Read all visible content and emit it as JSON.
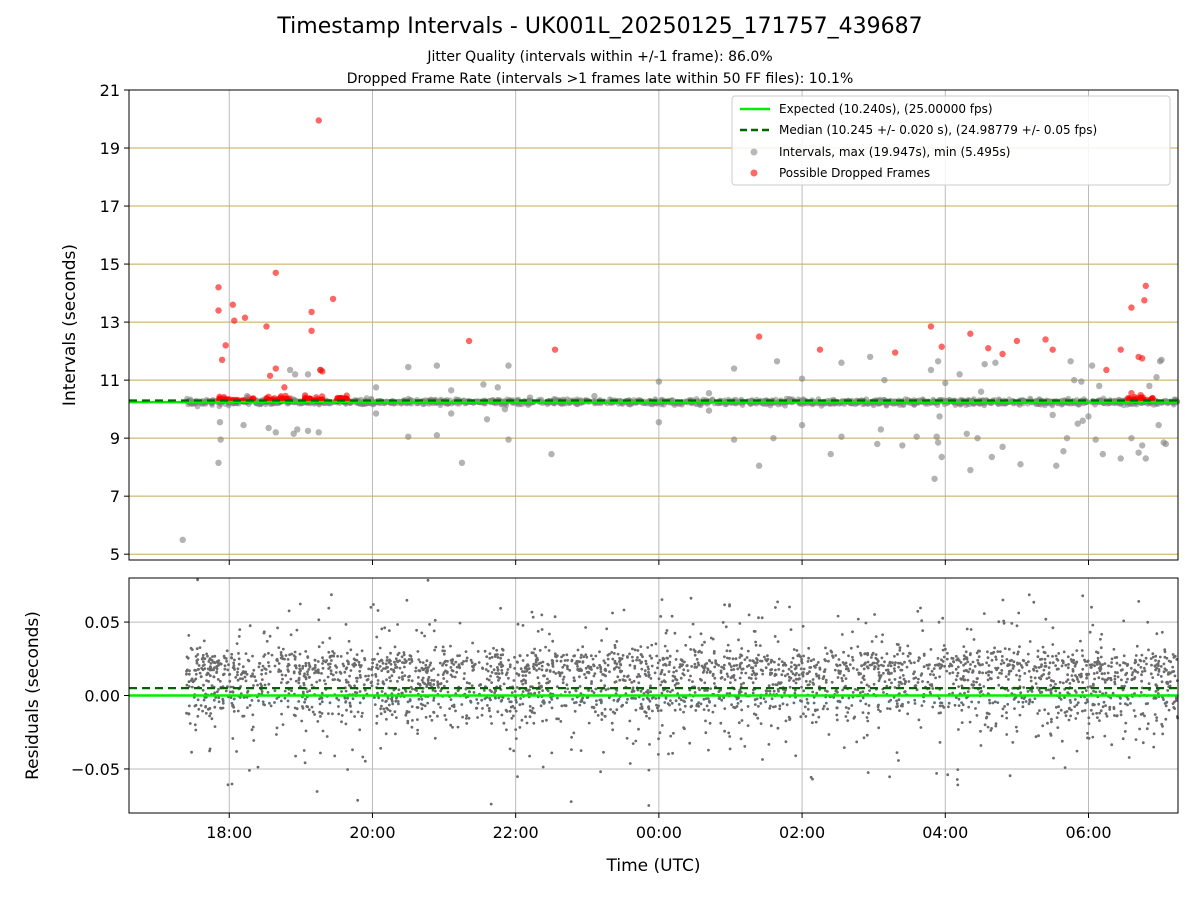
{
  "title": "Timestamp Intervals - UK001L_20250125_171757_439687",
  "subtitle_lines": [
    "Jitter Quality (intervals within +/-1 frame): 86.0%",
    "Dropped Frame Rate (intervals >1 frames late within 50 FF files): 10.1%"
  ],
  "colors": {
    "expected": "#00ee00",
    "median": "#006400",
    "intervals": "#808080",
    "dropped": "#ff0000",
    "grid_top": "#c8a850",
    "grid": "#bbbbbb"
  },
  "chart_data": [
    {
      "type": "scatter",
      "ylabel": "Intervals (seconds)",
      "xlabel": "",
      "xlim_hours": [
        16.6,
        31.25
      ],
      "ylim": [
        4.8,
        21
      ],
      "yticks": [
        5,
        7,
        9,
        11,
        13,
        15,
        17,
        19,
        21
      ],
      "grid": true,
      "legend_position": "top-right",
      "legend": [
        "Expected (10.240s), (25.00000 fps)",
        "Median (10.245 +/- 0.020 s), (24.98779 +/- 0.05 fps)",
        "Intervals, max (19.947s), min (5.495s)",
        "Possible Dropped Frames"
      ],
      "expected_value": 10.24,
      "median_value": 10.245,
      "series": [
        {
          "name": "Intervals, max (19.947s), min (5.495s)",
          "points": [
            [
              17.35,
              5.495
            ],
            [
              17.5,
              10.2
            ],
            [
              17.85,
              8.15
            ],
            [
              17.88,
              8.95
            ],
            [
              17.87,
              9.55
            ],
            [
              18.2,
              9.45
            ],
            [
              18.25,
              10.45
            ],
            [
              18.55,
              9.35
            ],
            [
              18.65,
              9.2
            ],
            [
              18.9,
              9.15
            ],
            [
              18.95,
              9.3
            ],
            [
              18.85,
              11.35
            ],
            [
              18.92,
              11.2
            ],
            [
              19.1,
              11.2
            ],
            [
              19.1,
              9.25
            ],
            [
              19.25,
              9.2
            ],
            [
              19.28,
              11.35
            ],
            [
              20.05,
              9.85
            ],
            [
              20.05,
              10.75
            ],
            [
              20.5,
              11.45
            ],
            [
              20.5,
              9.05
            ],
            [
              20.9,
              11.5
            ],
            [
              20.9,
              9.1
            ],
            [
              21.1,
              10.65
            ],
            [
              21.1,
              9.85
            ],
            [
              21.25,
              8.15
            ],
            [
              21.55,
              10.85
            ],
            [
              21.6,
              9.65
            ],
            [
              21.75,
              10.75
            ],
            [
              21.85,
              10.0
            ],
            [
              21.9,
              8.95
            ],
            [
              21.9,
              11.5
            ],
            [
              22.5,
              8.45
            ],
            [
              22.2,
              10.4
            ],
            [
              23.1,
              10.45
            ],
            [
              24.0,
              10.95
            ],
            [
              24.0,
              9.55
            ],
            [
              24.7,
              10.55
            ],
            [
              24.7,
              9.95
            ],
            [
              25.05,
              11.4
            ],
            [
              25.05,
              8.95
            ],
            [
              25.4,
              8.05
            ],
            [
              25.6,
              9.0
            ],
            [
              25.65,
              11.65
            ],
            [
              26.0,
              9.45
            ],
            [
              26.0,
              11.05
            ],
            [
              26.4,
              8.45
            ],
            [
              26.55,
              11.6
            ],
            [
              26.55,
              9.05
            ],
            [
              26.95,
              11.8
            ],
            [
              27.05,
              8.8
            ],
            [
              27.1,
              9.3
            ],
            [
              27.15,
              11.0
            ],
            [
              27.4,
              8.75
            ],
            [
              27.6,
              9.05
            ],
            [
              27.8,
              11.35
            ],
            [
              27.85,
              7.6
            ],
            [
              27.9,
              11.65
            ],
            [
              27.88,
              9.05
            ],
            [
              27.9,
              8.85
            ],
            [
              27.92,
              9.75
            ],
            [
              27.95,
              8.35
            ],
            [
              28.0,
              10.9
            ],
            [
              28.2,
              11.2
            ],
            [
              28.3,
              9.15
            ],
            [
              28.35,
              7.9
            ],
            [
              28.45,
              9.0
            ],
            [
              28.5,
              10.6
            ],
            [
              28.55,
              11.55
            ],
            [
              28.65,
              8.35
            ],
            [
              28.7,
              11.6
            ],
            [
              28.8,
              8.7
            ],
            [
              29.05,
              8.1
            ],
            [
              29.5,
              9.8
            ],
            [
              29.55,
              8.05
            ],
            [
              29.65,
              8.55
            ],
            [
              29.7,
              9.0
            ],
            [
              29.75,
              11.65
            ],
            [
              29.8,
              11.0
            ],
            [
              29.85,
              9.5
            ],
            [
              29.9,
              10.95
            ],
            [
              29.92,
              9.6
            ],
            [
              30.0,
              9.75
            ],
            [
              30.05,
              11.5
            ],
            [
              30.1,
              8.95
            ],
            [
              30.15,
              10.8
            ],
            [
              30.2,
              8.45
            ],
            [
              30.45,
              8.3
            ],
            [
              30.6,
              9.0
            ],
            [
              30.7,
              8.5
            ],
            [
              30.75,
              8.75
            ],
            [
              30.8,
              8.3
            ],
            [
              30.85,
              10.8
            ],
            [
              30.95,
              11.1
            ],
            [
              31.0,
              11.65
            ],
            [
              31.02,
              11.7
            ],
            [
              31.05,
              8.85
            ],
            [
              31.08,
              8.8
            ],
            [
              30.98,
              9.45
            ]
          ]
        },
        {
          "name": "Possible Dropped Frames",
          "points": [
            [
              17.85,
              14.2
            ],
            [
              17.85,
              13.4
            ],
            [
              17.9,
              11.7
            ],
            [
              17.95,
              12.2
            ],
            [
              18.05,
              13.6
            ],
            [
              18.07,
              13.05
            ],
            [
              18.22,
              13.15
            ],
            [
              18.52,
              12.85
            ],
            [
              18.57,
              11.15
            ],
            [
              18.65,
              11.4
            ],
            [
              18.65,
              14.7
            ],
            [
              18.77,
              10.75
            ],
            [
              19.15,
              13.35
            ],
            [
              19.15,
              12.7
            ],
            [
              19.25,
              19.95
            ],
            [
              19.27,
              11.35
            ],
            [
              19.3,
              11.3
            ],
            [
              19.45,
              13.8
            ],
            [
              21.35,
              12.35
            ],
            [
              22.55,
              12.05
            ],
            [
              25.4,
              12.5
            ],
            [
              26.25,
              12.05
            ],
            [
              27.3,
              11.95
            ],
            [
              27.8,
              12.85
            ],
            [
              27.95,
              12.15
            ],
            [
              28.35,
              12.6
            ],
            [
              28.6,
              12.1
            ],
            [
              28.8,
              11.9
            ],
            [
              29.0,
              12.35
            ],
            [
              29.4,
              12.4
            ],
            [
              29.5,
              12.05
            ],
            [
              30.25,
              11.35
            ],
            [
              30.45,
              12.05
            ],
            [
              30.6,
              13.5
            ],
            [
              30.7,
              11.8
            ],
            [
              30.75,
              11.75
            ],
            [
              30.78,
              13.75
            ],
            [
              30.8,
              14.25
            ],
            [
              30.6,
              10.55
            ]
          ]
        }
      ]
    },
    {
      "type": "scatter",
      "ylabel": "Residuals (seconds)",
      "xlabel": "Time (UTC)",
      "xlim_hours": [
        16.6,
        31.25
      ],
      "ylim": [
        -0.08,
        0.08
      ],
      "yticks": [
        -0.05,
        0.0,
        0.05
      ],
      "ytick_labels": [
        "−0.05",
        "0.00",
        "0.05"
      ],
      "xtick_hours": [
        18,
        20,
        22,
        24,
        26,
        28,
        30
      ],
      "xtick_labels": [
        "18:00",
        "20:00",
        "22:00",
        "00:00",
        "02:00",
        "04:00",
        "06:00"
      ],
      "grid": true,
      "expected_residual": 0.0,
      "median_residual": 0.005,
      "residual_range_approx": [
        -0.075,
        0.078
      ],
      "residual_cluster_levels": [
        0.02,
        0.0
      ]
    }
  ]
}
